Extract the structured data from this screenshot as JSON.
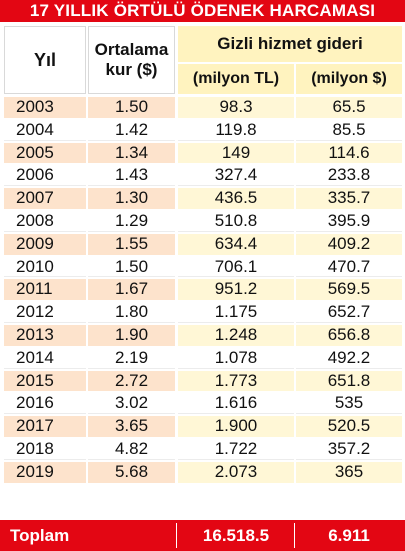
{
  "title": "17 YILLIK ÖRTÜLÜ ÖDENEK HARCAMASI",
  "headers": {
    "year": "Yıl",
    "rate_line1": "Ortalama",
    "rate_line2": "kur ($)",
    "group": "Gizli hizmet gideri",
    "tl": "(milyon TL)",
    "usd": "(milyon $)"
  },
  "chart_data": {
    "type": "table",
    "title": "17 YILLIK ÖRTÜLÜ ÖDENEK HARCAMASI",
    "columns": [
      "Yıl",
      "Ortalama kur ($)",
      "Gizli hizmet gideri (milyon TL)",
      "Gizli hizmet gideri (milyon $)"
    ],
    "rows": [
      {
        "year": "2003",
        "rate": "1.50",
        "tl": "98.3",
        "usd": "65.5"
      },
      {
        "year": "2004",
        "rate": "1.42",
        "tl": "119.8",
        "usd": "85.5"
      },
      {
        "year": "2005",
        "rate": "1.34",
        "tl": "149",
        "usd": "114.6"
      },
      {
        "year": "2006",
        "rate": "1.43",
        "tl": "327.4",
        "usd": "233.8"
      },
      {
        "year": "2007",
        "rate": "1.30",
        "tl": "436.5",
        "usd": "335.7"
      },
      {
        "year": "2008",
        "rate": "1.29",
        "tl": "510.8",
        "usd": "395.9"
      },
      {
        "year": "2009",
        "rate": "1.55",
        "tl": "634.4",
        "usd": "409.2"
      },
      {
        "year": "2010",
        "rate": "1.50",
        "tl": "706.1",
        "usd": "470.7"
      },
      {
        "year": "2011",
        "rate": "1.67",
        "tl": "951.2",
        "usd": "569.5"
      },
      {
        "year": "2012",
        "rate": "1.80",
        "tl": "1.175",
        "usd": "652.7"
      },
      {
        "year": "2013",
        "rate": "1.90",
        "tl": "1.248",
        "usd": "656.8"
      },
      {
        "year": "2014",
        "rate": "2.19",
        "tl": "1.078",
        "usd": "492.2"
      },
      {
        "year": "2015",
        "rate": "2.72",
        "tl": "1.773",
        "usd": "651.8"
      },
      {
        "year": "2016",
        "rate": "3.02",
        "tl": "1.616",
        "usd": "535"
      },
      {
        "year": "2017",
        "rate": "3.65",
        "tl": "1.900",
        "usd": "520.5"
      },
      {
        "year": "2018",
        "rate": "4.82",
        "tl": "1.722",
        "usd": "357.2"
      },
      {
        "year": "2019",
        "rate": "5.68",
        "tl": "2.073",
        "usd": "365"
      }
    ],
    "total": {
      "label": "Toplam",
      "tl": "16.518.5",
      "usd": "6.911"
    }
  },
  "colors": {
    "accent_red": "#e30613",
    "row_orange": "#fde3cc",
    "row_yellow": "#fff7d6",
    "header_yellow": "#fff3bf"
  }
}
